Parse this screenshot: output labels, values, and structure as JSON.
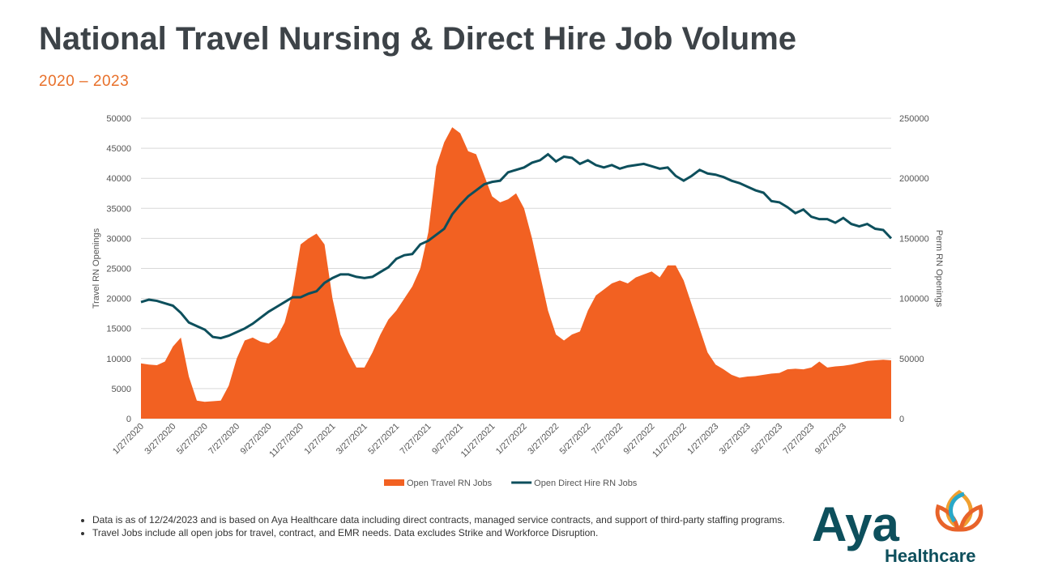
{
  "title": "National Travel Nursing & Direct Hire Job Volume",
  "subtitle": "2020 – 2023",
  "chart_data": {
    "type": "combo",
    "y_label": "Travel RN Openings",
    "y2_label": "Perm RN Openings",
    "categories": [
      "1/27/2020",
      null,
      null,
      null,
      "3/27/2020",
      null,
      null,
      null,
      "5/27/2020",
      null,
      null,
      null,
      "7/27/2020",
      null,
      null,
      null,
      "9/27/2020",
      null,
      null,
      null,
      "11/27/2020",
      null,
      null,
      null,
      "1/27/2021",
      null,
      null,
      null,
      "3/27/2021",
      null,
      null,
      null,
      "5/27/2021",
      null,
      null,
      null,
      "7/27/2021",
      null,
      null,
      null,
      "9/27/2021",
      null,
      null,
      null,
      "11/27/2021",
      null,
      null,
      null,
      "1/27/2022",
      null,
      null,
      null,
      "3/27/2022",
      null,
      null,
      null,
      "5/27/2022",
      null,
      null,
      null,
      "7/27/2022",
      null,
      null,
      null,
      "9/27/2022",
      null,
      null,
      null,
      "11/27/2022",
      null,
      null,
      null,
      "1/27/2023",
      null,
      null,
      null,
      "3/27/2023",
      null,
      null,
      null,
      "5/27/2023",
      null,
      null,
      null,
      "7/27/2023",
      null,
      null,
      null,
      "9/27/2023",
      null,
      null,
      null,
      null,
      null,
      null
    ],
    "series": [
      {
        "name": "Open Travel RN Jobs",
        "type": "area",
        "color": "#f26122",
        "values": [
          9200,
          9000,
          8900,
          9500,
          12000,
          13500,
          7000,
          3000,
          2800,
          2900,
          3000,
          5500,
          10000,
          13000,
          13500,
          12800,
          12500,
          13500,
          16000,
          21000,
          29000,
          30000,
          30800,
          29000,
          20000,
          14000,
          11000,
          8500,
          8500,
          11000,
          14000,
          16500,
          18000,
          20000,
          22000,
          25000,
          31000,
          42000,
          46000,
          48500,
          47500,
          44500,
          44000,
          40500,
          37000,
          36000,
          36500,
          37500,
          35000,
          30000,
          24000,
          18000,
          14000,
          13000,
          14000,
          14500,
          18000,
          20500,
          21500,
          22500,
          23000,
          22500,
          23500,
          24000,
          24500,
          23500,
          25500,
          25500,
          23000,
          19000,
          15000,
          11000,
          9000,
          8200,
          7300,
          6800,
          7000,
          7100,
          7300,
          7500,
          7600,
          8200,
          8300,
          8200,
          8500,
          9500,
          8500,
          8700,
          8800,
          9000,
          9300,
          9600,
          9700,
          9800,
          9700
        ]
      },
      {
        "name": "Open Direct Hire RN Jobs",
        "type": "line",
        "axis": "y2",
        "color": "#0d4f5c",
        "values": [
          97000,
          99000,
          98000,
          96000,
          94000,
          88000,
          80000,
          77000,
          74000,
          68000,
          67000,
          69000,
          72000,
          75000,
          79000,
          84000,
          89000,
          93000,
          97000,
          101000,
          101000,
          104000,
          106000,
          113000,
          117000,
          120000,
          120000,
          118000,
          117000,
          118000,
          122000,
          126000,
          133000,
          136000,
          137000,
          145000,
          148000,
          153000,
          158000,
          170000,
          178000,
          185000,
          190000,
          195000,
          197000,
          198000,
          205000,
          207000,
          209000,
          213000,
          215000,
          220000,
          214000,
          218000,
          217000,
          212000,
          215000,
          211000,
          209000,
          211000,
          208000,
          210000,
          211000,
          212000,
          210000,
          208000,
          209000,
          202000,
          198000,
          202000,
          207000,
          204000,
          203000,
          201000,
          198000,
          196000,
          193000,
          190000,
          188000,
          181000,
          180000,
          176000,
          171000,
          174000,
          168000,
          166000,
          166000,
          163000,
          167000,
          162000,
          160000,
          162000,
          158000,
          157000,
          150000
        ]
      }
    ],
    "ylim": [
      0,
      50000
    ],
    "yticks": [
      0,
      5000,
      10000,
      15000,
      20000,
      25000,
      30000,
      35000,
      40000,
      45000,
      50000
    ],
    "y2lim": [
      0,
      250000
    ],
    "y2ticks": [
      0,
      50000,
      100000,
      150000,
      200000,
      250000
    ],
    "grid": true,
    "legend": "bottom"
  },
  "notes": [
    "Data is as of 12/24/2023 and is based on Aya Healthcare data including direct contracts, managed service contracts, and support of third-party staffing programs.",
    "Travel  Jobs include all open jobs for travel, contract, and EMR needs. Data excludes Strike and Workforce Disruption."
  ],
  "logo": {
    "name": "Aya",
    "tagline": "Healthcare"
  }
}
